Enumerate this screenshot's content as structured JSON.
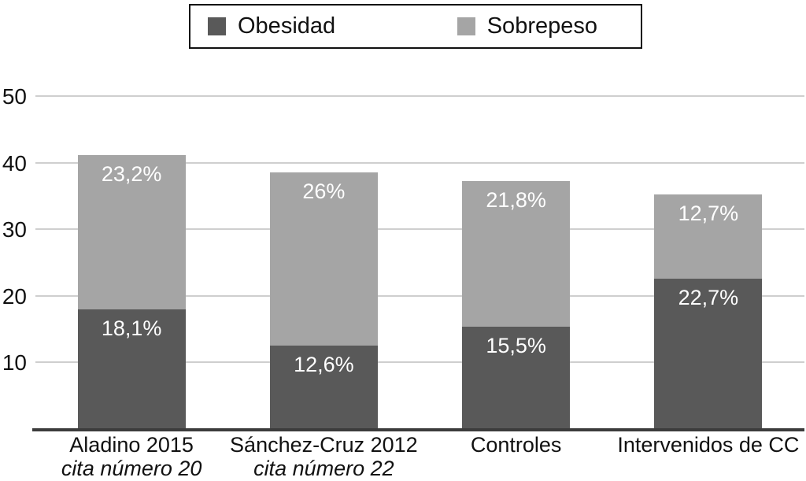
{
  "chart_data": {
    "type": "bar",
    "stacked": true,
    "categories": [
      "Aladino 2015",
      "Sánchez-Cruz 2012",
      "Controles",
      "Intervenidos de CC"
    ],
    "category_sublabels": [
      "cita número 20",
      "cita número 22",
      "",
      ""
    ],
    "series": [
      {
        "name": "Obesidad",
        "color": "#595959",
        "values": [
          18.1,
          12.6,
          15.5,
          22.7
        ],
        "labels": [
          "18,1%",
          "12,6%",
          "15,5%",
          "22,7%"
        ]
      },
      {
        "name": "Sobrepeso",
        "color": "#a5a5a5",
        "values": [
          23.2,
          26,
          21.8,
          12.7
        ],
        "labels": [
          "23,2%",
          "26%",
          "21,8%",
          "12,7%"
        ]
      }
    ],
    "ylim": [
      0,
      50
    ],
    "yticks": [
      10,
      20,
      30,
      40,
      50
    ],
    "grid": true,
    "legend_position": "top",
    "value_label_color": "#ffffff",
    "gridline_color": "#cfcfcf",
    "axis_color": "#3c3c3c"
  }
}
